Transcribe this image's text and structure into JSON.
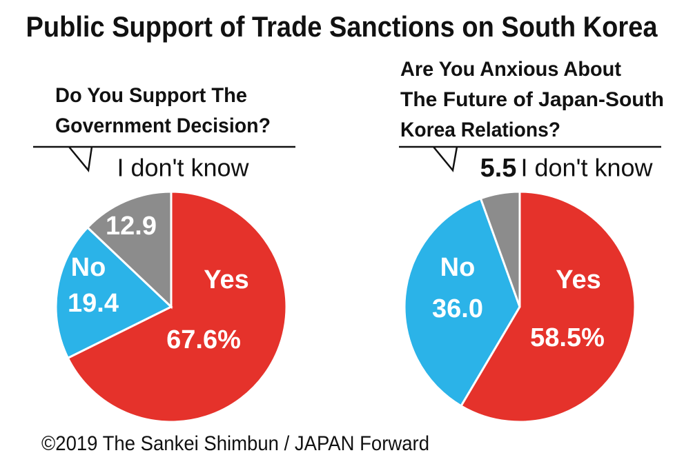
{
  "title": "Public Support of Trade Sanctions on South Korea",
  "source": "©2019 The Sankei Shimbun / JAPAN Forward",
  "chart_data": [
    {
      "type": "pie",
      "title": [
        "Do You Support The",
        "Government Decision?"
      ],
      "categories": [
        "Yes",
        "No",
        "I don't know"
      ],
      "values": [
        67.6,
        19.4,
        12.9
      ],
      "value_labels": [
        "67.6%",
        "19.4",
        "12.9"
      ],
      "colors": [
        "#e5322b",
        "#2bb3e8",
        "#8c8c8c"
      ]
    },
    {
      "type": "pie",
      "title": [
        "Are You Anxious About",
        "The Future of Japan-South",
        "Korea Relations?"
      ],
      "categories": [
        "Yes",
        "No",
        "I don't know"
      ],
      "values": [
        58.5,
        36.0,
        5.5
      ],
      "value_labels": [
        "58.5%",
        "36.0",
        "5.5"
      ],
      "colors": [
        "#e5322b",
        "#2bb3e8",
        "#8c8c8c"
      ]
    }
  ]
}
